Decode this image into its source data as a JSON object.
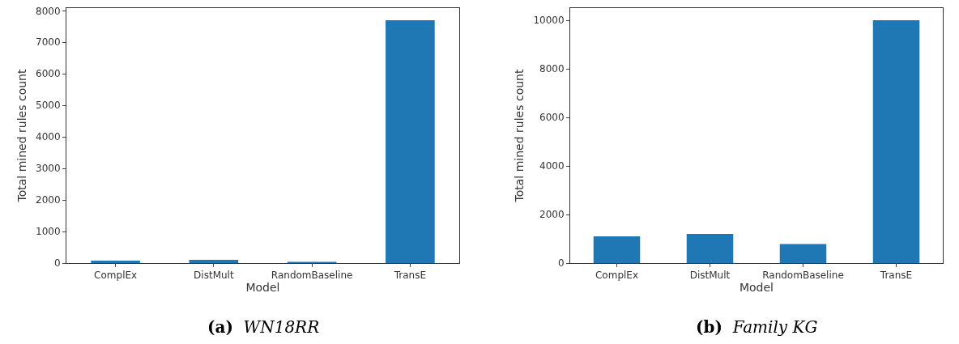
{
  "chart_data": [
    {
      "type": "bar",
      "categories": [
        "ComplEx",
        "DistMult",
        "RandomBaseline",
        "TransE"
      ],
      "values": [
        80,
        100,
        40,
        7700
      ],
      "color": "#1f77b4",
      "xlabel": "Model",
      "ylabel": "Total mined rules count",
      "ylim": [
        0,
        8085
      ],
      "yticks": [
        0,
        1000,
        2000,
        3000,
        4000,
        5000,
        6000,
        7000,
        8000
      ],
      "grid": false,
      "legend": false,
      "annotations": [
        "(a)  WN18RR"
      ]
    },
    {
      "type": "bar",
      "categories": [
        "ComplEx",
        "DistMult",
        "RandomBaseline",
        "TransE"
      ],
      "values": [
        1100,
        1200,
        780,
        10000
      ],
      "color": "#1f77b4",
      "xlabel": "Model",
      "ylabel": "Total mined rules count",
      "ylim": [
        0,
        10500
      ],
      "yticks": [
        0,
        2000,
        4000,
        6000,
        8000,
        10000
      ],
      "grid": false,
      "legend": false,
      "annotations": [
        "(b)  Family KG"
      ]
    }
  ]
}
